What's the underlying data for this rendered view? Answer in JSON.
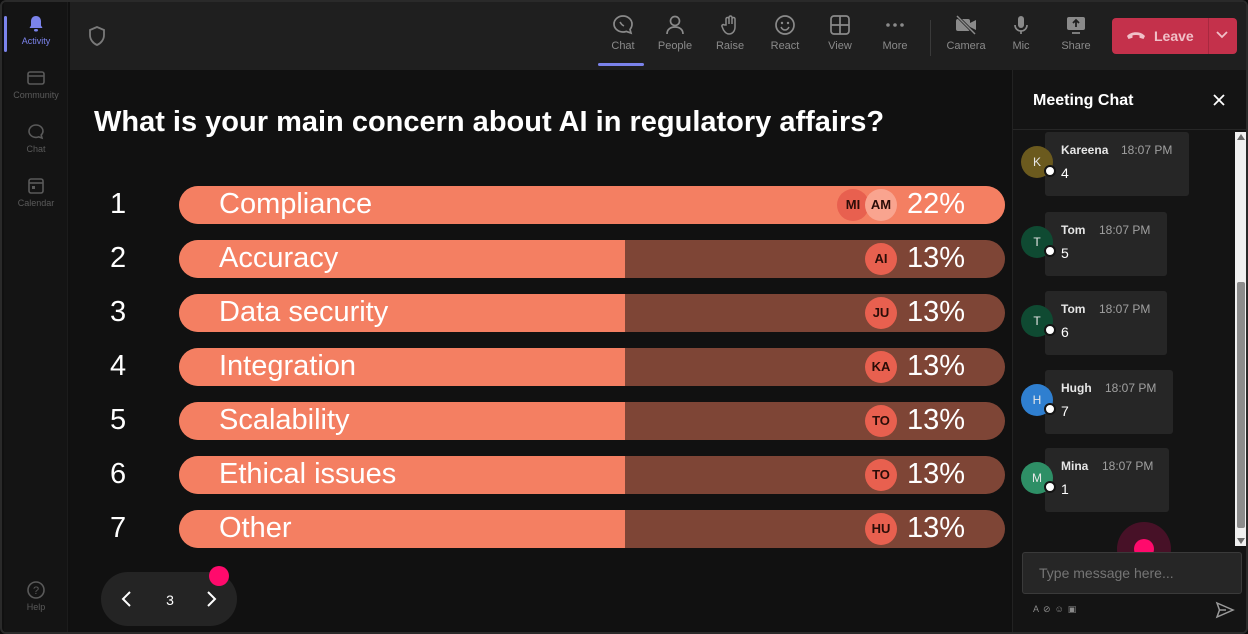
{
  "rail": {
    "items": [
      {
        "label": "Activity",
        "icon": "bell-icon",
        "active": true
      },
      {
        "label": "Community",
        "icon": "community-icon",
        "active": false
      },
      {
        "label": "Chat",
        "icon": "chat-icon",
        "active": false
      },
      {
        "label": "Calendar",
        "icon": "calendar-icon",
        "active": false
      }
    ],
    "help": "Help"
  },
  "toolbar": {
    "chat": "Chat",
    "people": "People",
    "raise": "Raise",
    "react": "React",
    "view": "View",
    "more": "More",
    "camera": "Camera",
    "mic": "Mic",
    "share": "Share",
    "leave": "Leave"
  },
  "poll": {
    "question": "What is your main concern about AI in regulatory affairs?",
    "options": [
      {
        "num": "1",
        "label": "Compliance",
        "percent": "22%",
        "fill": 1.0,
        "avatars": [
          "MI",
          "AM"
        ]
      },
      {
        "num": "2",
        "label": "Accuracy",
        "percent": "13%",
        "fill": 0.54,
        "avatars": [
          "AI"
        ]
      },
      {
        "num": "3",
        "label": "Data security",
        "percent": "13%",
        "fill": 0.54,
        "avatars": [
          "JU"
        ]
      },
      {
        "num": "4",
        "label": "Integration",
        "percent": "13%",
        "fill": 0.54,
        "avatars": [
          "KA"
        ]
      },
      {
        "num": "5",
        "label": "Scalability",
        "percent": "13%",
        "fill": 0.54,
        "avatars": [
          "TO"
        ]
      },
      {
        "num": "6",
        "label": "Ethical issues",
        "percent": "13%",
        "fill": 0.54,
        "avatars": [
          "TO"
        ]
      },
      {
        "num": "7",
        "label": "Other",
        "percent": "13%",
        "fill": 0.54,
        "avatars": [
          "HU"
        ]
      }
    ]
  },
  "pager": {
    "page": "3"
  },
  "chat": {
    "title": "Meeting Chat",
    "messages": [
      {
        "initial": "K",
        "name": "Kareena",
        "time": "18:07 PM",
        "text": "4",
        "color": "#6b5a1e"
      },
      {
        "initial": "T",
        "name": "Tom",
        "time": "18:07 PM",
        "text": "5",
        "color": "#0f4a32"
      },
      {
        "initial": "T",
        "name": "Tom",
        "time": "18:07 PM",
        "text": "6",
        "color": "#0f4a32"
      },
      {
        "initial": "H",
        "name": "Hugh",
        "time": "18:07 PM",
        "text": "7",
        "color": "#2f7fd0"
      },
      {
        "initial": "M",
        "name": "Mina",
        "time": "18:07 PM",
        "text": "1",
        "color": "#2e8f66"
      }
    ],
    "placeholder": "Type message here..."
  },
  "colors": {
    "accent": "#7b83eb",
    "leave": "#c4314b",
    "bar_fill": "#f47f62",
    "bar_track": "#7e4536",
    "cursor_dot": "#ff0a6c"
  }
}
